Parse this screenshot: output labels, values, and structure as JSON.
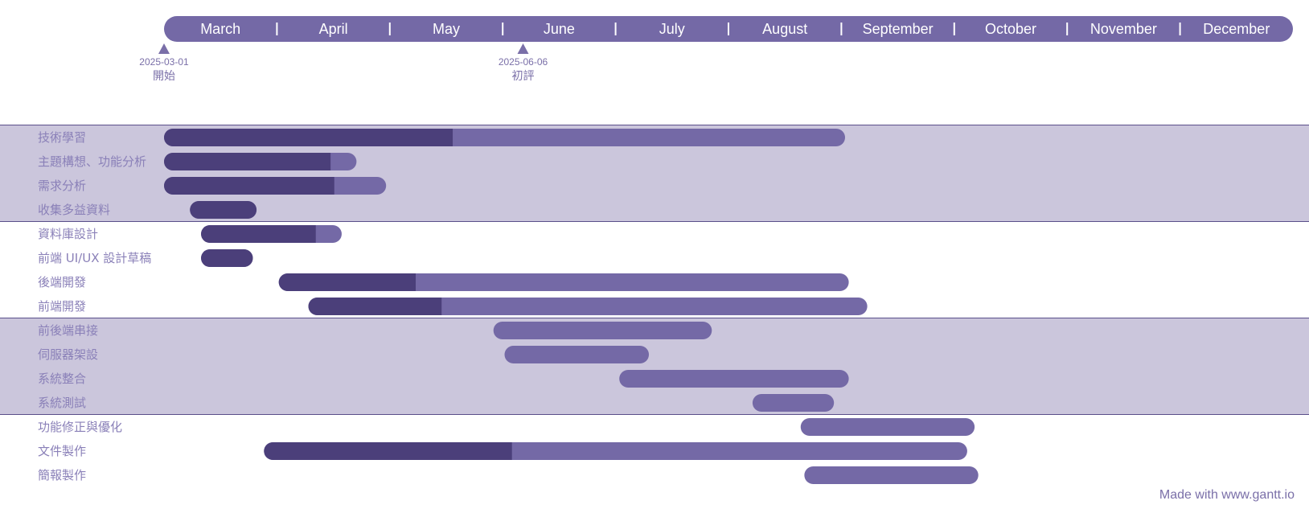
{
  "chart_data": {
    "type": "gantt",
    "timeline_start": "2025-03-01",
    "timeline_end": "2025-12-31",
    "months": [
      "March",
      "April",
      "May",
      "June",
      "July",
      "August",
      "September",
      "October",
      "November",
      "December"
    ],
    "milestones": [
      {
        "date": "2025-03-01",
        "label": "開始"
      },
      {
        "date": "2025-06-06",
        "label": "初評"
      }
    ],
    "groups": [
      {
        "shaded": true,
        "tasks": [
          {
            "name": "技術學習",
            "start": "2025-03-01",
            "end": "2025-09-01",
            "progress_end": "2025-05-18"
          },
          {
            "name": "主題構想、功能分析",
            "start": "2025-03-01",
            "end": "2025-04-22",
            "progress_end": "2025-04-15"
          },
          {
            "name": "需求分析",
            "start": "2025-03-01",
            "end": "2025-04-30",
            "progress_end": "2025-04-16"
          },
          {
            "name": "收集多益資料",
            "start": "2025-03-08",
            "end": "2025-03-26",
            "progress_end": "2025-03-26"
          }
        ]
      },
      {
        "shaded": false,
        "tasks": [
          {
            "name": "資料庫設計",
            "start": "2025-03-11",
            "end": "2025-04-18",
            "progress_end": "2025-04-11"
          },
          {
            "name": "前端 UI/UX 設計草稿",
            "start": "2025-03-11",
            "end": "2025-03-25",
            "progress_end": "2025-03-25"
          },
          {
            "name": "後端開發",
            "start": "2025-04-01",
            "end": "2025-09-02",
            "progress_end": "2025-05-08"
          },
          {
            "name": "前端開發",
            "start": "2025-04-09",
            "end": "2025-09-07",
            "progress_end": "2025-05-15"
          }
        ]
      },
      {
        "shaded": true,
        "tasks": [
          {
            "name": "前後端串接",
            "start": "2025-05-29",
            "end": "2025-07-27",
            "progress_end": null
          },
          {
            "name": "伺服器架設",
            "start": "2025-06-01",
            "end": "2025-07-10",
            "progress_end": null
          },
          {
            "name": "系統整合",
            "start": "2025-07-02",
            "end": "2025-09-02",
            "progress_end": null
          },
          {
            "name": "系統測試",
            "start": "2025-08-07",
            "end": "2025-08-29",
            "progress_end": null
          }
        ]
      },
      {
        "shaded": false,
        "tasks": [
          {
            "name": "功能修正與優化",
            "start": "2025-08-20",
            "end": "2025-10-06",
            "progress_end": null
          },
          {
            "name": "文件製作",
            "start": "2025-03-28",
            "end": "2025-10-04",
            "progress_end": "2025-06-03"
          },
          {
            "name": "簡報製作",
            "start": "2025-08-21",
            "end": "2025-10-07",
            "progress_end": null
          }
        ]
      }
    ]
  },
  "colors": {
    "header": "#7469a6",
    "bar": "#7469a6",
    "bar_progress": "#4b3f7a",
    "band": "#cbc6dc",
    "band_line": "#5a4f8a",
    "label": "#8a80b8",
    "milestone": "#7a6fa8"
  },
  "footer": {
    "text": "Made with www.gantt.io"
  }
}
